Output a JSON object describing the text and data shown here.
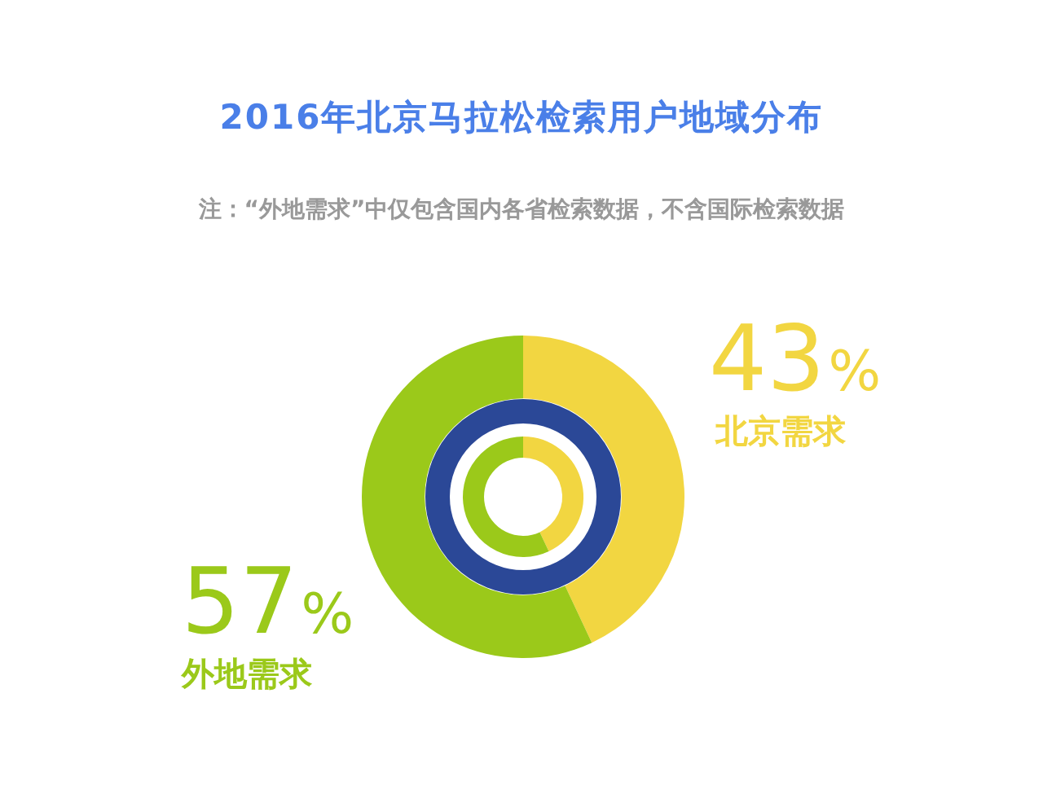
{
  "chart_data": {
    "type": "donut",
    "title": "2016年北京马拉松检索用户地域分布",
    "annotations": [
      "注：“外地需求”中仅包含国内各省检索数据，不含国际检索数据"
    ],
    "categories": [
      "北京需求",
      "外地需求"
    ],
    "values": [
      43,
      57
    ],
    "colors": [
      "#f2d641",
      "#9bc91a"
    ],
    "value_labels": [
      "43%",
      "57%"
    ],
    "legend": false
  }
}
